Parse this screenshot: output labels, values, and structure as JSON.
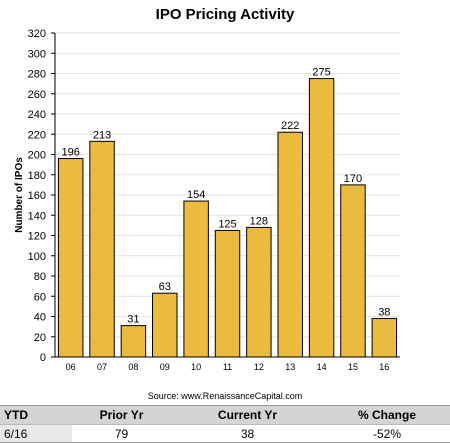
{
  "chart_data": {
    "type": "bar",
    "title": "IPO Pricing Activity",
    "ylabel": "Number of IPOs",
    "xlabel": "",
    "categories": [
      "06",
      "07",
      "08",
      "09",
      "10",
      "11",
      "12",
      "13",
      "14",
      "15",
      "16"
    ],
    "values": [
      196,
      213,
      31,
      63,
      154,
      125,
      128,
      222,
      275,
      170,
      38
    ],
    "ylim": [
      0,
      320
    ],
    "yticks": [
      0,
      20,
      40,
      60,
      80,
      100,
      120,
      140,
      160,
      180,
      200,
      220,
      240,
      260,
      280,
      300,
      320
    ],
    "grid": true,
    "bar_color": "#ebbb3f",
    "bar_edge_color": "#000000",
    "grid_color": "#e3e3e3"
  },
  "source": "Source: www.RenaissanceCapital.com",
  "summary": {
    "headers": {
      "ytd": "YTD",
      "prior": "Prior Yr",
      "current": "Current Yr",
      "change": "% Change"
    },
    "row": {
      "ytd": "6/16",
      "prior": "79",
      "current": "38",
      "change": "-52%"
    }
  }
}
